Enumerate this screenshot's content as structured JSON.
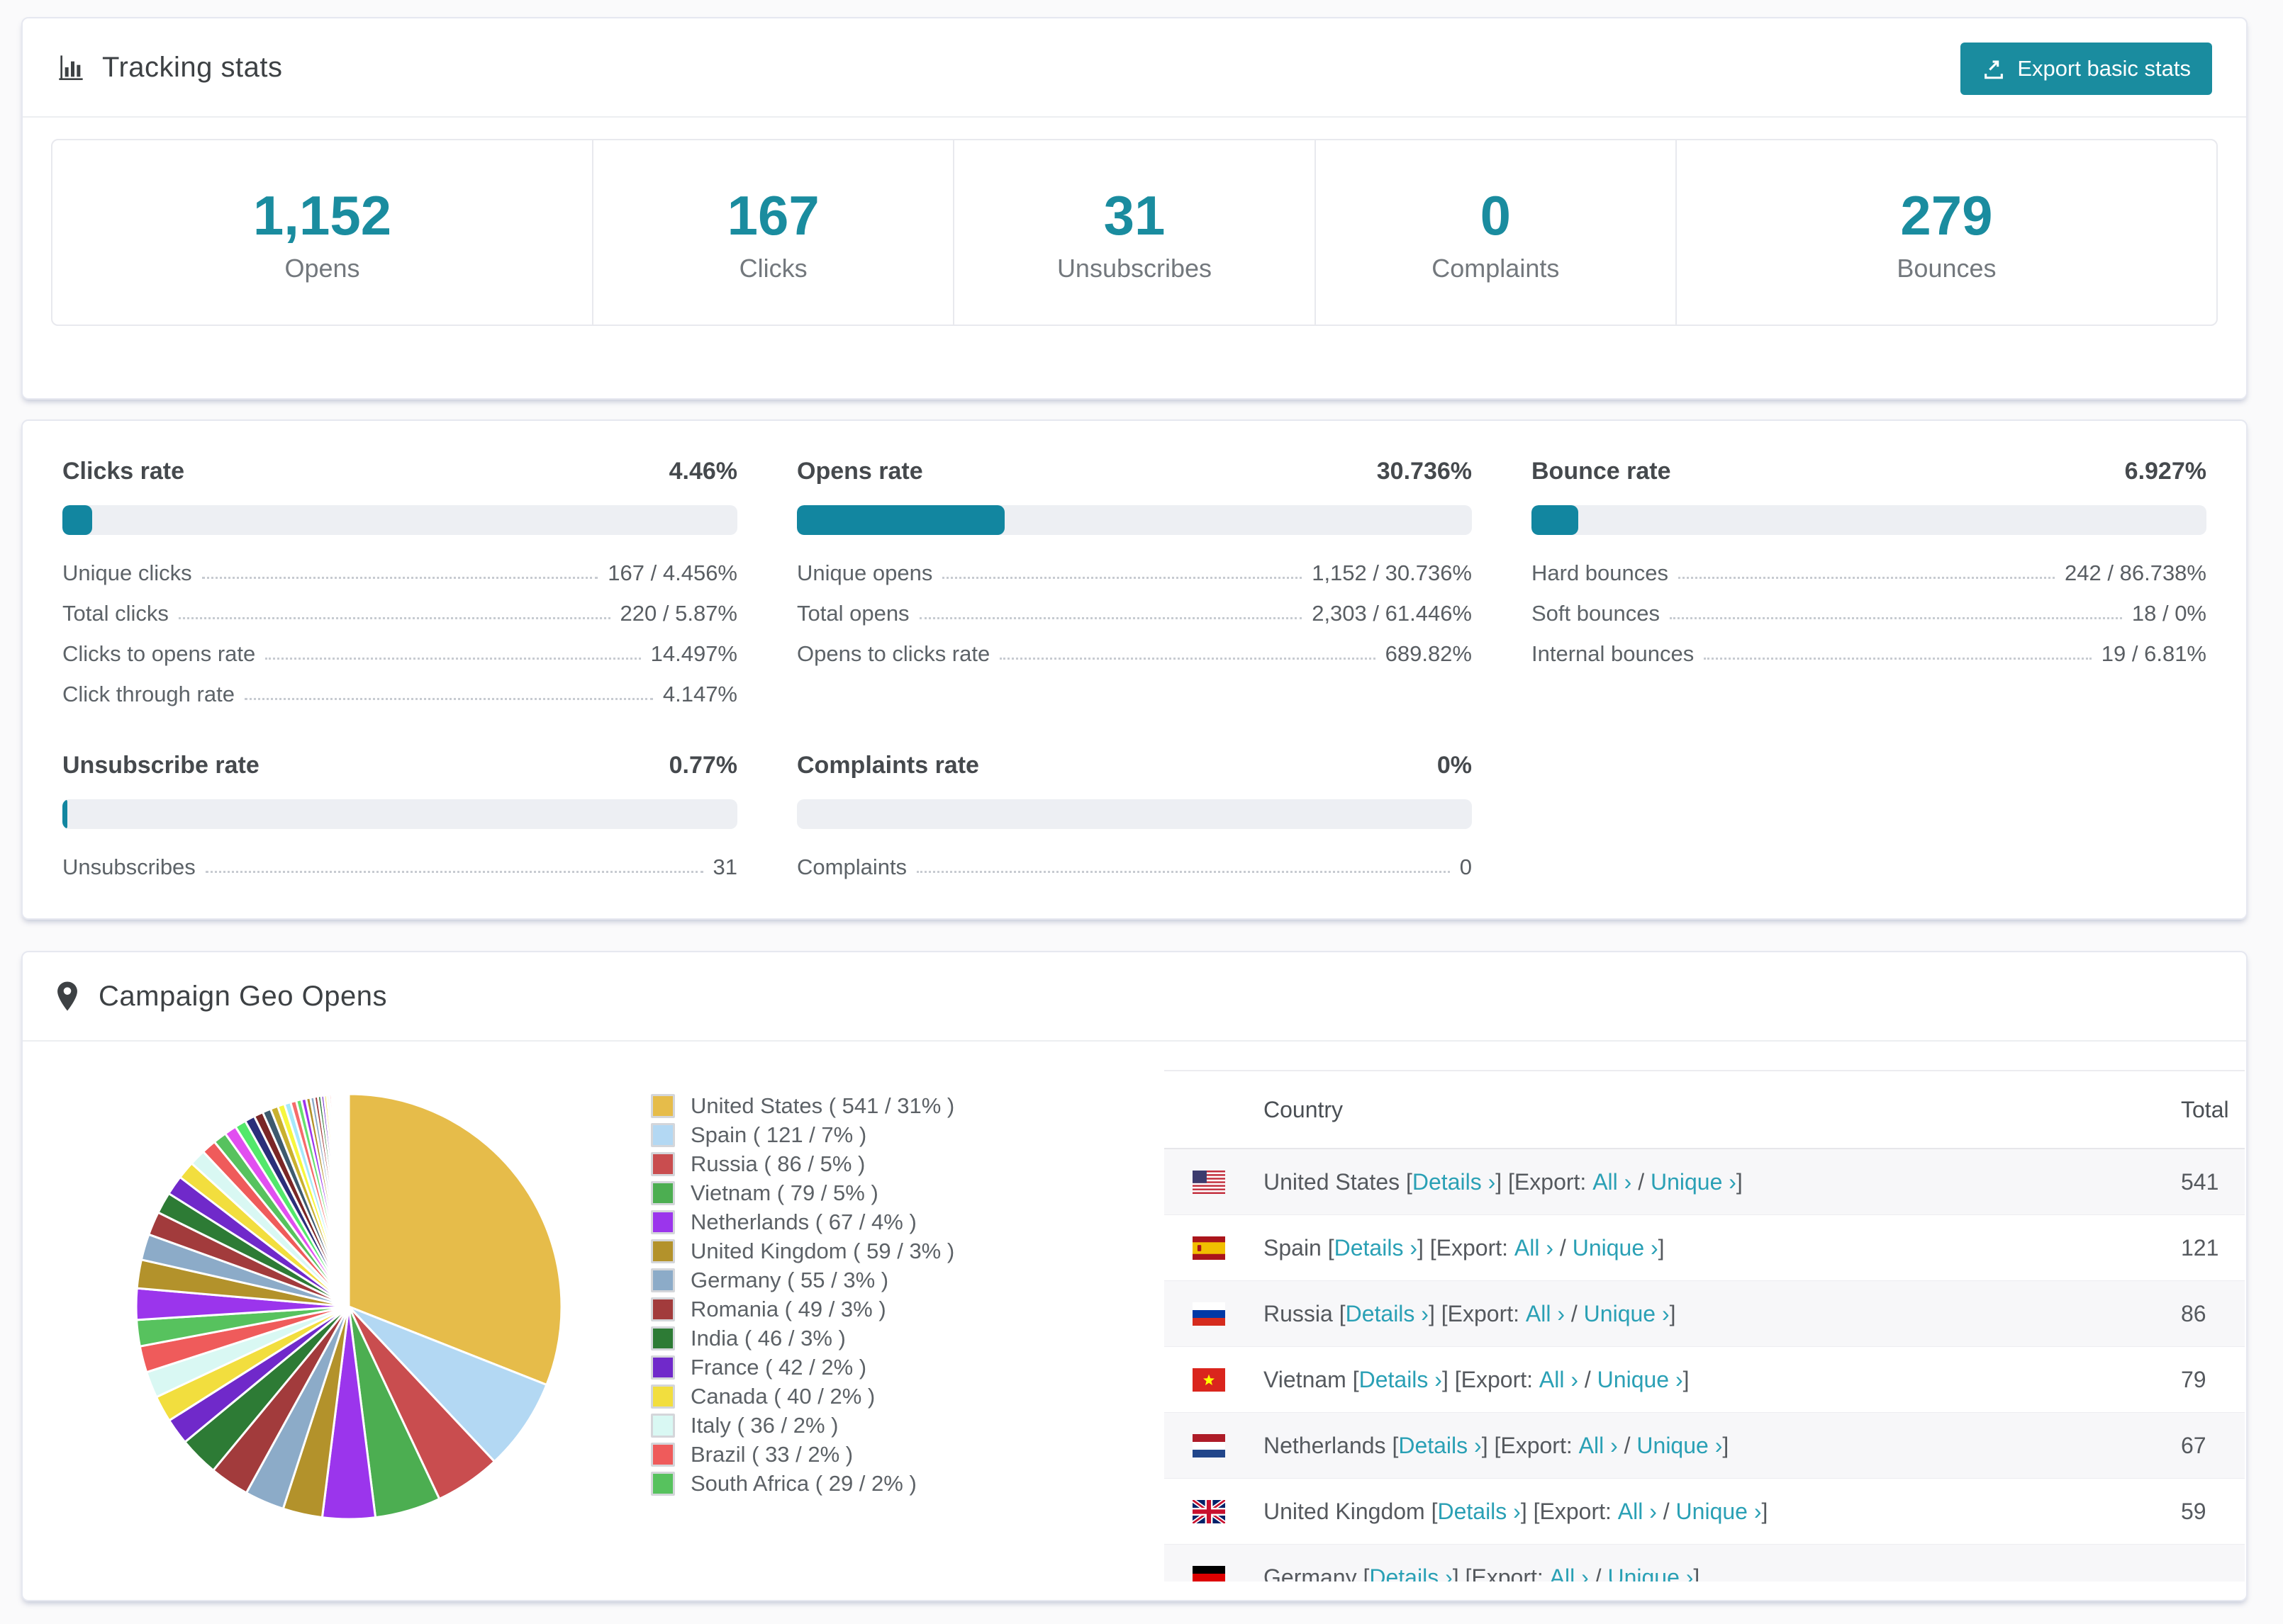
{
  "colors": {
    "accent": "#1a8c9f",
    "link": "#2aa0b5",
    "bar_track": "#edeff3"
  },
  "tracking_card": {
    "title": "Tracking stats",
    "export_button_label": "Export basic stats",
    "stats": [
      {
        "value": "1,152",
        "label": "Opens"
      },
      {
        "value": "167",
        "label": "Clicks"
      },
      {
        "value": "31",
        "label": "Unsubscribes"
      },
      {
        "value": "0",
        "label": "Complaints"
      },
      {
        "value": "279",
        "label": "Bounces"
      }
    ]
  },
  "rates_card": {
    "panels": [
      {
        "title": "Clicks rate",
        "value": "4.46%",
        "pct": 4.46,
        "rows": [
          {
            "label": "Unique clicks",
            "value": "167 / 4.456%"
          },
          {
            "label": "Total clicks",
            "value": "220 / 5.87%"
          },
          {
            "label": "Clicks to opens rate",
            "value": "14.497%"
          },
          {
            "label": "Click through rate",
            "value": "4.147%"
          }
        ]
      },
      {
        "title": "Opens rate",
        "value": "30.736%",
        "pct": 30.736,
        "rows": [
          {
            "label": "Unique opens",
            "value": "1,152 / 30.736%"
          },
          {
            "label": "Total opens",
            "value": "2,303 / 61.446%"
          },
          {
            "label": "Opens to clicks rate",
            "value": "689.82%"
          }
        ]
      },
      {
        "title": "Bounce rate",
        "value": "6.927%",
        "pct": 6.927,
        "rows": [
          {
            "label": "Hard bounces",
            "value": "242 / 86.738%"
          },
          {
            "label": "Soft bounces",
            "value": "18 / 0%"
          },
          {
            "label": "Internal bounces",
            "value": "19 / 6.81%"
          }
        ]
      },
      {
        "title": "Unsubscribe rate",
        "value": "0.77%",
        "pct": 0.77,
        "rows": [
          {
            "label": "Unsubscribes",
            "value": "31"
          }
        ]
      },
      {
        "title": "Complaints rate",
        "value": "0%",
        "pct": 0,
        "rows": [
          {
            "label": "Complaints",
            "value": "0"
          }
        ]
      }
    ]
  },
  "geo_card": {
    "title": "Campaign Geo Opens",
    "table": {
      "headers": {
        "country": "Country",
        "total": "Total"
      },
      "details_label": "Details",
      "export_label": "Export:",
      "all_label": "All",
      "unique_label": "Unique",
      "chevron": "›",
      "rows": [
        {
          "country": "United States",
          "flag": "us",
          "total": "541"
        },
        {
          "country": "Spain",
          "flag": "es",
          "total": "121"
        },
        {
          "country": "Russia",
          "flag": "ru",
          "total": "86"
        },
        {
          "country": "Vietnam",
          "flag": "vn",
          "total": "79"
        },
        {
          "country": "Netherlands",
          "flag": "nl",
          "total": "67"
        },
        {
          "country": "United Kingdom",
          "flag": "gb",
          "total": "59"
        },
        {
          "country": "Germany",
          "flag": "de",
          "total": "",
          "partial": true
        }
      ]
    }
  },
  "chart_data": {
    "type": "pie",
    "title": "Campaign Geo Opens",
    "legend_position": "right",
    "start_angle_deg": -90,
    "direction": "clockwise",
    "slices": [
      {
        "label": "United States",
        "count": 541,
        "pct": 31,
        "color": "#e6bc4a"
      },
      {
        "label": "Spain",
        "count": 121,
        "pct": 7,
        "color": "#b3d8f3"
      },
      {
        "label": "Russia",
        "count": 86,
        "pct": 5,
        "color": "#c94d4f"
      },
      {
        "label": "Vietnam",
        "count": 79,
        "pct": 5,
        "color": "#4cae51"
      },
      {
        "label": "Netherlands",
        "count": 67,
        "pct": 4,
        "color": "#9b35ec"
      },
      {
        "label": "United Kingdom",
        "count": 59,
        "pct": 3,
        "color": "#b3922b"
      },
      {
        "label": "Germany",
        "count": 55,
        "pct": 3,
        "color": "#8cabc8"
      },
      {
        "label": "Romania",
        "count": 49,
        "pct": 3,
        "color": "#a23b3c"
      },
      {
        "label": "India",
        "count": 46,
        "pct": 3,
        "color": "#2d7b35"
      },
      {
        "label": "France",
        "count": 42,
        "pct": 2,
        "color": "#7029ca"
      },
      {
        "label": "Canada",
        "count": 40,
        "pct": 2,
        "color": "#f2de3e"
      },
      {
        "label": "Italy",
        "count": 36,
        "pct": 2,
        "color": "#d9f8f3"
      },
      {
        "label": "Brazil",
        "count": 33,
        "pct": 2,
        "color": "#ef5b5b"
      },
      {
        "label": "South Africa",
        "count": 29,
        "pct": 2,
        "color": "#57c25e"
      }
    ],
    "others": {
      "total_pct": 26,
      "count": 44,
      "decay": 0.91,
      "palette": [
        "#9b35ec",
        "#b3922b",
        "#8cabc8",
        "#a23b3c",
        "#2d7b35",
        "#7029ca",
        "#f2de3e",
        "#d9f8f3",
        "#ef5b5b",
        "#57c25e",
        "#e14ff0",
        "#53e86b",
        "#2b2e7a",
        "#7a2626",
        "#3e5a6e",
        "#c9b02e",
        "#f7f73e",
        "#a6e9fa",
        "#f56b6b",
        "#66e06e"
      ]
    }
  }
}
